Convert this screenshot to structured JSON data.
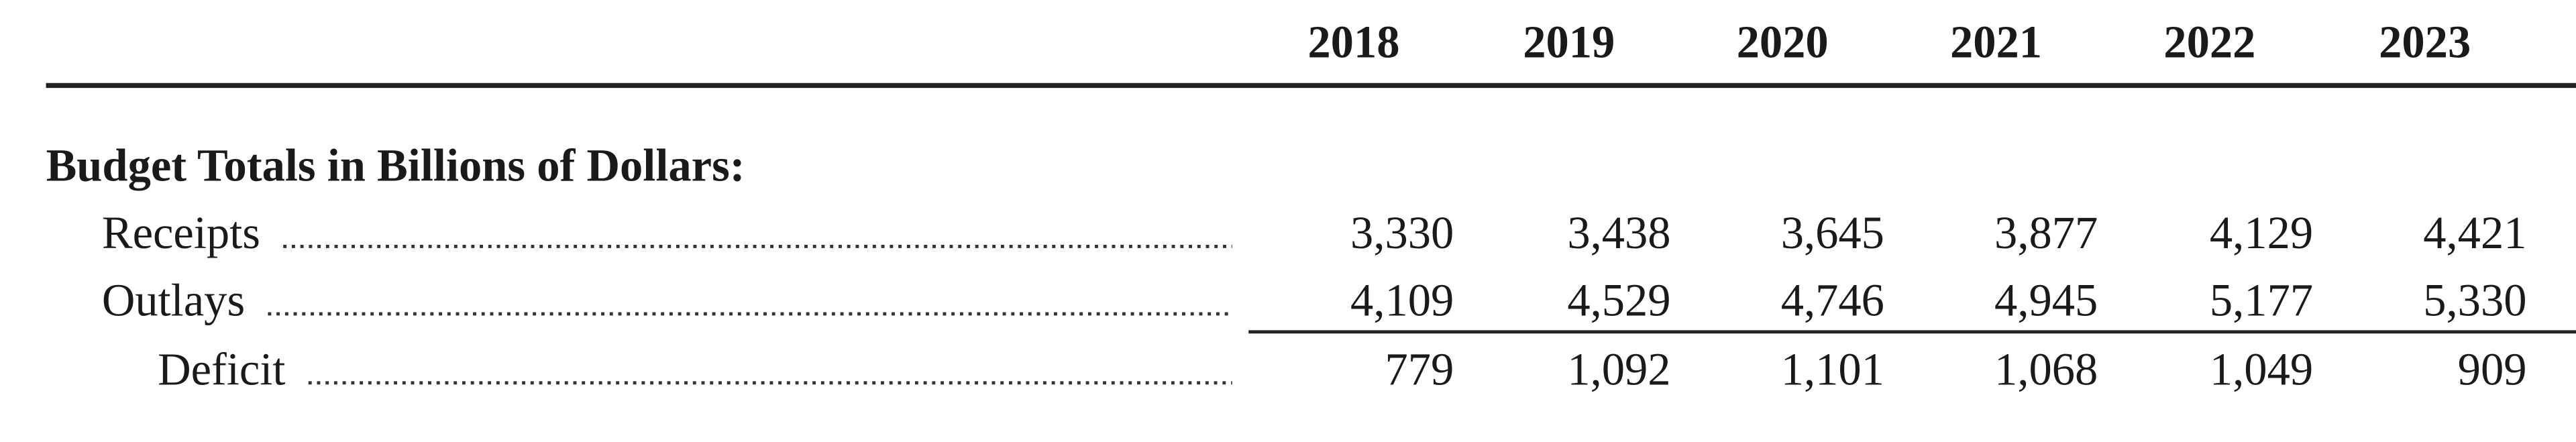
{
  "header": {
    "years": [
      "2018",
      "2019",
      "2020",
      "2021",
      "2022",
      "2023"
    ]
  },
  "table": {
    "section_title": "Budget Totals in Billions of Dollars:",
    "rows": [
      {
        "label": "Receipts",
        "values": [
          "3,330",
          "3,438",
          "3,645",
          "3,877",
          "4,129",
          "4,421"
        ]
      },
      {
        "label": "Outlays",
        "values": [
          "4,109",
          "4,529",
          "4,746",
          "4,945",
          "5,177",
          "5,330"
        ]
      },
      {
        "label": "Deficit",
        "values": [
          "779",
          "1,092",
          "1,101",
          "1,068",
          "1,049",
          "909"
        ]
      }
    ]
  }
}
